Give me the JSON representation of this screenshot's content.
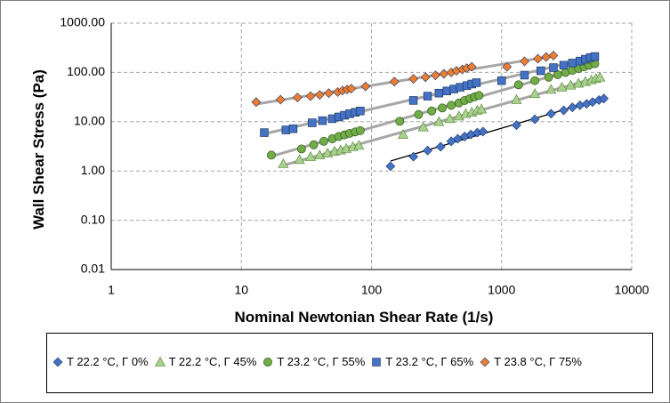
{
  "chart_data": {
    "type": "scatter",
    "title": "",
    "xlabel": "Nominal Newtonian Shear Rate (1/s)",
    "ylabel": "Wall Shear Stress (Pa)",
    "xscale": "log",
    "yscale": "log",
    "xlim": [
      1,
      10000
    ],
    "ylim": [
      0.01,
      1000
    ],
    "x_ticks": [
      "1",
      "10",
      "100",
      "1000",
      "10000"
    ],
    "y_ticks": [
      "0.01",
      "0.10",
      "1.00",
      "10.00",
      "100.00",
      "1000.00"
    ],
    "grid": "dashed",
    "legend_position": "bottom",
    "series": [
      {
        "name": "T  22.2  °C, Γ 0%",
        "marker": "diamond",
        "color": "#4472c4",
        "fit_color": "#000000",
        "x": [
          140,
          210,
          270,
          340,
          410,
          460,
          520,
          580,
          650,
          720,
          1300,
          1800,
          2400,
          3000,
          3500,
          4000,
          4500,
          5000,
          5600,
          6100
        ],
        "y": [
          1.25,
          1.95,
          2.6,
          3.1,
          4.0,
          4.5,
          5.0,
          5.5,
          6.0,
          6.3,
          8.5,
          11.2,
          14.5,
          17.0,
          19.5,
          21.5,
          23.0,
          25.0,
          27.5,
          29.5
        ]
      },
      {
        "name": "T  22.2  °C, Γ 45%",
        "marker": "triangle",
        "color": "#a9d18e",
        "fit_color": "#a6a6a6",
        "x": [
          21,
          28,
          34,
          40,
          46,
          52,
          58,
          64,
          72,
          80,
          175,
          250,
          330,
          400,
          470,
          530,
          590,
          650,
          700,
          1300,
          1800,
          2400,
          2900,
          3400,
          3900,
          4400,
          4900,
          5300,
          5700
        ],
        "y": [
          1.4,
          1.7,
          1.95,
          2.1,
          2.3,
          2.5,
          2.65,
          2.85,
          3.1,
          3.3,
          5.5,
          7.8,
          10.0,
          11.5,
          13.0,
          14.5,
          15.5,
          17.0,
          18.0,
          28.0,
          37.0,
          45.0,
          50.0,
          55.0,
          60.0,
          65.0,
          70.0,
          75.0,
          80.0
        ]
      },
      {
        "name": "T  23.2  °C, Γ 55%",
        "marker": "circle",
        "color": "#70ad47",
        "fit_color": "#a6a6a6",
        "x": [
          17,
          29,
          36,
          43,
          50,
          56,
          62,
          68,
          75,
          82,
          165,
          230,
          290,
          350,
          410,
          470,
          520,
          570,
          620,
          670,
          1350,
          1800,
          2300,
          2700,
          3100,
          3500,
          3900,
          4300,
          4700,
          5200
        ],
        "y": [
          2.1,
          2.8,
          3.4,
          4.0,
          4.5,
          5.0,
          5.4,
          5.8,
          6.2,
          6.6,
          10.2,
          14.0,
          16.5,
          19.0,
          21.5,
          24.0,
          27.0,
          29.5,
          32.0,
          34.0,
          56.0,
          68.0,
          80.0,
          90.0,
          100.0,
          110.0,
          120.0,
          130.0,
          140.0,
          150.0
        ]
      },
      {
        "name": "T  23.2  °C, Γ 65%",
        "marker": "square",
        "color": "#4472c4",
        "fit_color": "#a6a6a6",
        "x": [
          15,
          22,
          25,
          35,
          42,
          50,
          56,
          62,
          68,
          75,
          82,
          210,
          270,
          330,
          380,
          430,
          480,
          540,
          590,
          640,
          1000,
          1500,
          2000,
          2500,
          3000,
          3500,
          4000,
          4400,
          4800,
          5200
        ],
        "y": [
          6.0,
          6.8,
          7.2,
          9.5,
          10.5,
          11.5,
          12.5,
          13.5,
          14.5,
          15.5,
          16.5,
          27.0,
          33.0,
          38.0,
          42.0,
          46.0,
          50.0,
          54.0,
          58.0,
          62.0,
          68.0,
          88.0,
          108.0,
          125.0,
          140.0,
          155.0,
          170.0,
          185.0,
          200.0,
          210.0
        ]
      },
      {
        "name": "T  23.8  °C, Γ 75%",
        "marker": "diamond",
        "color": "#ed7d31",
        "fit_color": "#a6a6a6",
        "x": [
          13,
          20,
          27,
          34,
          40,
          47,
          55,
          60,
          65,
          70,
          90,
          150,
          210,
          260,
          310,
          360,
          410,
          450,
          500,
          540,
          590,
          1100,
          1500,
          1900,
          2200,
          2500
        ],
        "y": [
          25.0,
          28.0,
          31.0,
          33.0,
          35.0,
          38.0,
          40.0,
          43.0,
          45.0,
          47.0,
          52.0,
          65.0,
          74.0,
          80.0,
          87.0,
          94.0,
          100.0,
          108.0,
          115.0,
          122.0,
          130.0,
          130.0,
          168.0,
          190.0,
          205.0,
          220.0
        ]
      }
    ]
  }
}
